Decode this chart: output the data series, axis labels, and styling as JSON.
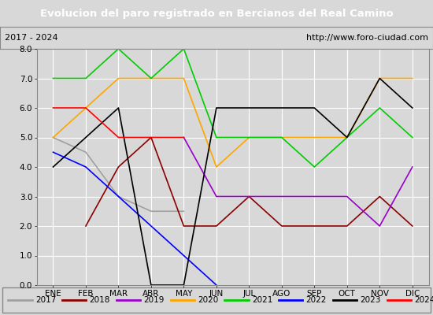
{
  "title": "Evolucion del paro registrado en Bercianos del Real Camino",
  "subtitle_left": "2017 - 2024",
  "subtitle_right": "http://www.foro-ciudad.com",
  "xlabel_ticks": [
    "ENE",
    "FEB",
    "MAR",
    "ABR",
    "MAY",
    "JUN",
    "JUL",
    "AGO",
    "SEP",
    "OCT",
    "NOV",
    "DIC"
  ],
  "ylim": [
    0.0,
    8.0
  ],
  "yticks": [
    0.0,
    1.0,
    2.0,
    3.0,
    4.0,
    5.0,
    6.0,
    7.0,
    8.0
  ],
  "fig_bg_color": "#d8d8d8",
  "plot_bg_color": "#d8d8d8",
  "header_bg_color": "#4169b0",
  "series": {
    "2017": {
      "color": "#a0a0a0",
      "data": [
        5.0,
        4.5,
        3.0,
        2.5,
        2.5,
        null,
        null,
        null,
        null,
        null,
        null,
        null
      ]
    },
    "2018": {
      "color": "#8b0000",
      "data": [
        null,
        2.0,
        4.0,
        5.0,
        2.0,
        2.0,
        3.0,
        2.0,
        2.0,
        2.0,
        3.0,
        2.0
      ]
    },
    "2019": {
      "color": "#9900cc",
      "data": [
        null,
        null,
        null,
        null,
        5.0,
        3.0,
        3.0,
        3.0,
        3.0,
        3.0,
        2.0,
        4.0
      ]
    },
    "2020": {
      "color": "#ffa500",
      "data": [
        5.0,
        6.0,
        7.0,
        7.0,
        7.0,
        4.0,
        5.0,
        5.0,
        5.0,
        5.0,
        7.0,
        7.0
      ]
    },
    "2021": {
      "color": "#00cc00",
      "data": [
        7.0,
        7.0,
        8.0,
        7.0,
        8.0,
        5.0,
        5.0,
        5.0,
        4.0,
        5.0,
        6.0,
        5.0
      ]
    },
    "2022": {
      "color": "#0000ff",
      "data": [
        4.5,
        4.0,
        3.0,
        2.0,
        1.0,
        0.0,
        null,
        null,
        null,
        null,
        null,
        null
      ]
    },
    "2023": {
      "color": "#000000",
      "data": [
        4.0,
        5.0,
        6.0,
        0.0,
        0.0,
        6.0,
        6.0,
        6.0,
        6.0,
        5.0,
        7.0,
        6.0
      ]
    },
    "2024": {
      "color": "#ff0000",
      "data": [
        6.0,
        6.0,
        5.0,
        5.0,
        5.0,
        null,
        null,
        null,
        null,
        null,
        null,
        null
      ]
    }
  },
  "legend_order": [
    "2017",
    "2018",
    "2019",
    "2020",
    "2021",
    "2022",
    "2023",
    "2024"
  ]
}
